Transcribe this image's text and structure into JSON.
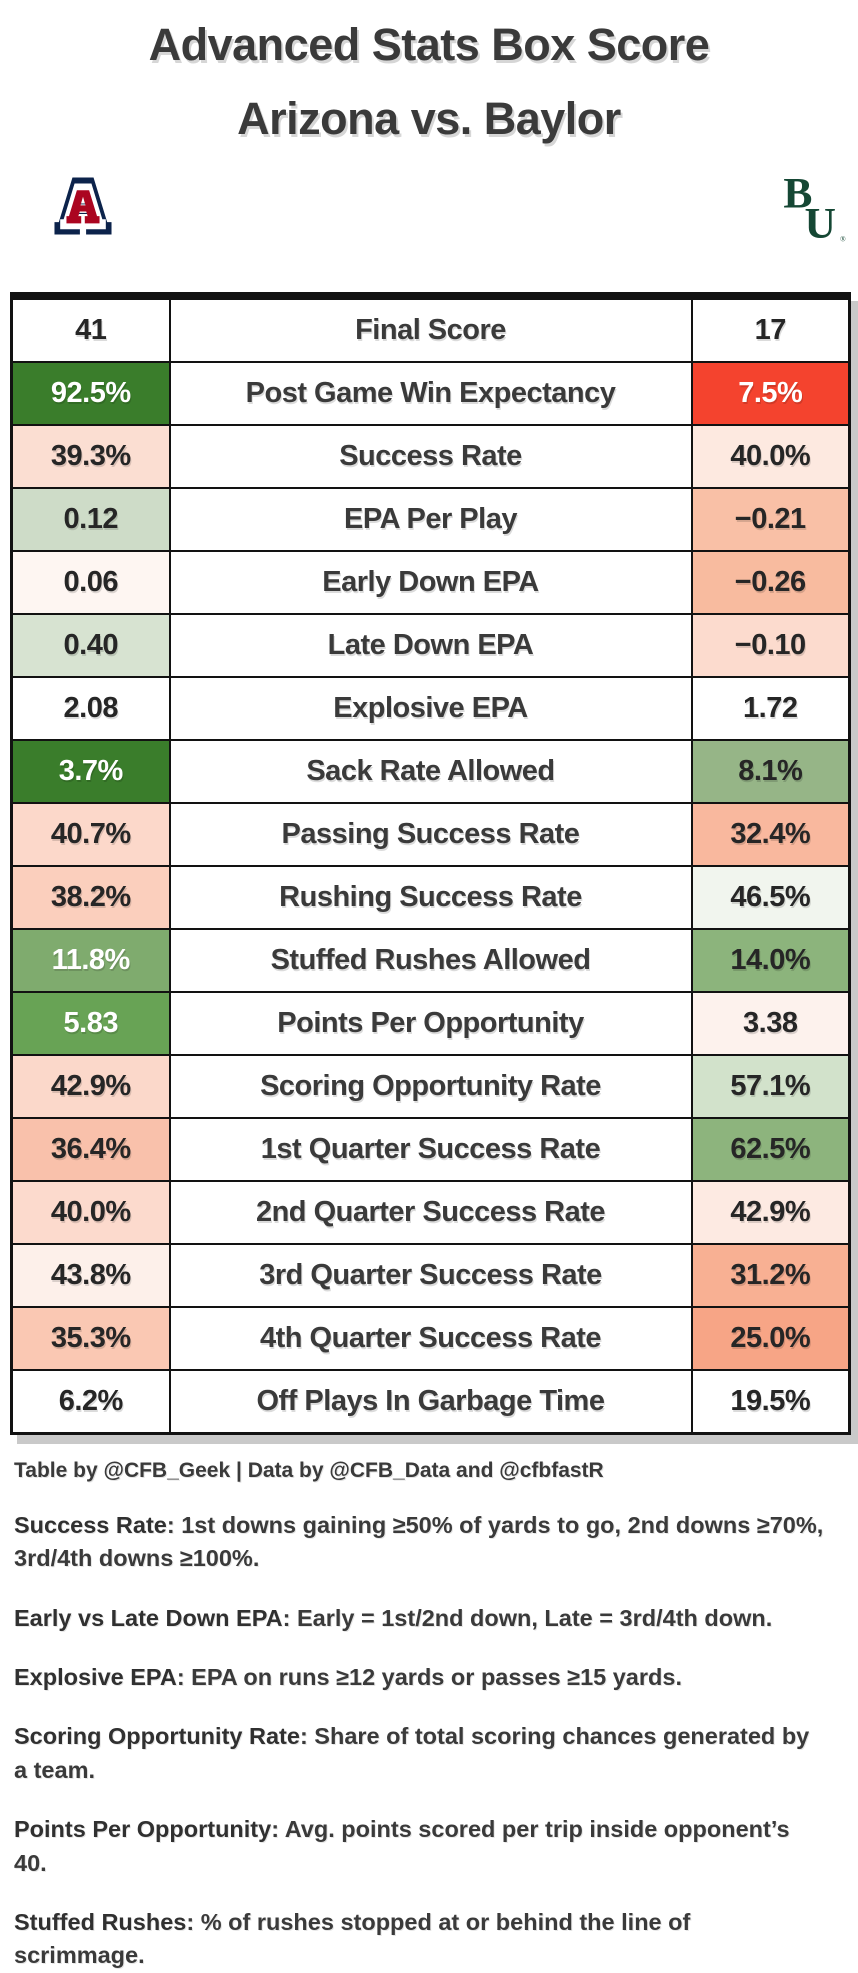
{
  "header": {
    "title_line1": "Advanced Stats Box Score",
    "title_line2": "Arizona vs. Baylor"
  },
  "teams": {
    "away": {
      "name": "Arizona",
      "logo": "arizona-block-a-logo",
      "colors": {
        "navy": "#0c234b",
        "red": "#ab0520",
        "white": "#ffffff"
      }
    },
    "home": {
      "name": "Baylor",
      "logo": "baylor-interlocking-bu-logo",
      "colors": {
        "green": "#154734"
      },
      "trademark": "®"
    }
  },
  "table": {
    "value_color": "#262626",
    "label_color": "#3a3a3a",
    "border_color": "#121212",
    "rows": [
      {
        "label": "Final Score",
        "away": "41",
        "home": "17",
        "away_bg": "#ffffff",
        "home_bg": "#ffffff"
      },
      {
        "label": "Post Game Win Expectancy",
        "away": "92.5%",
        "home": "7.5%",
        "away_bg": "#3a7d2b",
        "away_fg": "#ffffff",
        "home_bg": "#f4432e",
        "home_fg": "#ffffff"
      },
      {
        "label": "Success Rate",
        "away": "39.3%",
        "home": "40.0%",
        "away_bg": "#fbded2",
        "home_bg": "#fde9e0"
      },
      {
        "label": "EPA Per Play",
        "away": "0.12",
        "home": "−0.21",
        "away_bg": "#cedcc8",
        "home_bg": "#f9c0a6"
      },
      {
        "label": "Early Down EPA",
        "away": "0.06",
        "home": "−0.26",
        "away_bg": "#fef6f2",
        "home_bg": "#f8bb9f"
      },
      {
        "label": "Late Down EPA",
        "away": "0.40",
        "home": "−0.10",
        "away_bg": "#d7e3d1",
        "home_bg": "#fcdbce"
      },
      {
        "label": "Explosive EPA",
        "away": "2.08",
        "home": "1.72",
        "away_bg": "#ffffff",
        "home_bg": "#ffffff"
      },
      {
        "label": "Sack Rate Allowed",
        "away": "3.7%",
        "home": "8.1%",
        "away_bg": "#3a7d2b",
        "away_fg": "#ffffff",
        "home_bg": "#96b587"
      },
      {
        "label": "Passing Success Rate",
        "away": "40.7%",
        "home": "32.4%",
        "away_bg": "#fcd8ca",
        "home_bg": "#f9b89e"
      },
      {
        "label": "Rushing Success Rate",
        "away": "38.2%",
        "home": "46.5%",
        "away_bg": "#fbcfbd",
        "home_bg": "#f1f5ee"
      },
      {
        "label": "Stuffed Rushes Allowed",
        "away": "11.8%",
        "home": "14.0%",
        "away_bg": "#7fab6e",
        "away_fg": "#ffffff",
        "home_bg": "#8cb47c"
      },
      {
        "label": "Points Per Opportunity",
        "away": "5.83",
        "home": "3.38",
        "away_bg": "#68a355",
        "away_fg": "#ffffff",
        "home_bg": "#fdf2ed"
      },
      {
        "label": "Scoring Opportunity Rate",
        "away": "42.9%",
        "home": "57.1%",
        "away_bg": "#fbd8ca",
        "home_bg": "#d2e2cb"
      },
      {
        "label": "1st Quarter Success Rate",
        "away": "36.4%",
        "home": "62.5%",
        "away_bg": "#f9c1ab",
        "home_bg": "#8db47d"
      },
      {
        "label": "2nd Quarter Success Rate",
        "away": "40.0%",
        "home": "42.9%",
        "away_bg": "#fcdacd",
        "home_bg": "#fdeae2"
      },
      {
        "label": "3rd Quarter Success Rate",
        "away": "43.8%",
        "home": "31.2%",
        "away_bg": "#fdf0ea",
        "home_bg": "#f8b093"
      },
      {
        "label": "4th Quarter Success Rate",
        "away": "35.3%",
        "home": "25.0%",
        "away_bg": "#fac8b3",
        "home_bg": "#f7a586"
      },
      {
        "label": "Off Plays In Garbage Time",
        "away": "6.2%",
        "home": "19.5%",
        "away_bg": "#ffffff",
        "home_bg": "#ffffff"
      }
    ]
  },
  "chart_data": {
    "type": "table",
    "title": "Advanced Stats Box Score — Arizona vs. Baylor",
    "categories": [
      "Final Score",
      "Post Game Win Expectancy",
      "Success Rate",
      "EPA Per Play",
      "Early Down EPA",
      "Late Down EPA",
      "Explosive EPA",
      "Sack Rate Allowed",
      "Passing Success Rate",
      "Rushing Success Rate",
      "Stuffed Rushes Allowed",
      "Points Per Opportunity",
      "Scoring Opportunity Rate",
      "1st Quarter Success Rate",
      "2nd Quarter Success Rate",
      "3rd Quarter Success Rate",
      "4th Quarter Success Rate",
      "Off Plays In Garbage Time"
    ],
    "series": [
      {
        "name": "Arizona",
        "values": [
          "41",
          "92.5%",
          "39.3%",
          "0.12",
          "0.06",
          "0.40",
          "2.08",
          "3.7%",
          "40.7%",
          "38.2%",
          "11.8%",
          "5.83",
          "42.9%",
          "36.4%",
          "40.0%",
          "43.8%",
          "35.3%",
          "6.2%"
        ]
      },
      {
        "name": "Baylor",
        "values": [
          "17",
          "7.5%",
          "40.0%",
          "−0.21",
          "−0.26",
          "−0.10",
          "1.72",
          "8.1%",
          "32.4%",
          "46.5%",
          "14.0%",
          "3.38",
          "57.1%",
          "62.5%",
          "42.9%",
          "31.2%",
          "25.0%",
          "19.5%"
        ]
      }
    ],
    "color_coding": "green = good performance, red = poor performance"
  },
  "footer": {
    "credit": "Table by @CFB_Geek | Data by @CFB_Data and @cfbfastR",
    "notes": [
      {
        "term": "Success Rate",
        "definition": "1st downs gaining ≥50% of yards to go, 2nd downs ≥70%, 3rd/4th downs ≥100%."
      },
      {
        "term": "Early vs Late Down EPA",
        "definition": "Early = 1st/2nd down, Late = 3rd/4th down."
      },
      {
        "term": "Explosive EPA",
        "definition": "EPA on runs ≥12 yards or passes ≥15 yards."
      },
      {
        "term": "Scoring Opportunity Rate",
        "definition": "Share of total scoring chances generated by a team."
      },
      {
        "term": "Points Per Opportunity",
        "definition": "Avg. points scored per trip inside opponent’s 40."
      },
      {
        "term": "Stuffed Rushes",
        "definition": "% of rushes stopped at or behind the line of scrimmage."
      }
    ]
  }
}
